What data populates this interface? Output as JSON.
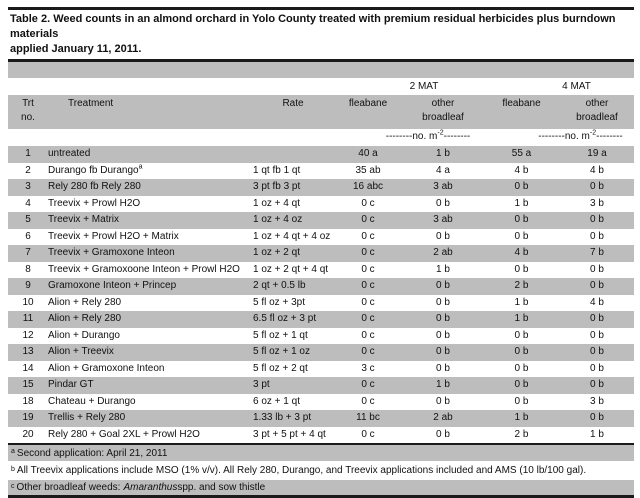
{
  "title": {
    "line1": "Table 2. Weed counts in an almond orchard in Yolo County treated with premium residual herbicides plus burndown materials",
    "line2": "applied January 11, 2011."
  },
  "header": {
    "group_2mat": "2 MAT",
    "group_4mat": "4 MAT",
    "trt_line1": "Trt",
    "trt_line2": "no.",
    "treatment": "Treatment",
    "rate": "Rate",
    "fleabane_2mat": "fleabane",
    "other_2mat_line1": "other",
    "other_2mat_line2": "broadleaf",
    "fleabane_4mat": "fleabane",
    "other_4mat_line1": "other",
    "other_4mat_line2": "broadleaf",
    "units_pre": "--------no. m",
    "units_sup": "-2",
    "units_post": "--------"
  },
  "table": {
    "rows": [
      {
        "no": "1",
        "treatment": "untreated",
        "sup": "",
        "rate": "",
        "f2": "40 a",
        "o2": "1 b",
        "f4": "55 a",
        "o4": "19 a"
      },
      {
        "no": "2",
        "treatment": "Durango fb Durango",
        "sup": "a",
        "rate": "1 qt fb 1 qt",
        "f2": "35 ab",
        "o2": "4 a",
        "f4": "4 b",
        "o4": "4 b"
      },
      {
        "no": "3",
        "treatment": "Rely 280 fb Rely 280",
        "sup": "",
        "rate": "3 pt fb 3 pt",
        "f2": "16 abc",
        "o2": "3 ab",
        "f4": "0 b",
        "o4": "0 b"
      },
      {
        "no": "4",
        "treatment": "Treevix + Prowl H2O",
        "sup": "",
        "rate": "1 oz + 4 qt",
        "f2": "0 c",
        "o2": "0 b",
        "f4": "1 b",
        "o4": "3 b"
      },
      {
        "no": "5",
        "treatment": "Treevix + Matrix",
        "sup": "",
        "rate": "1 oz + 4 oz",
        "f2": "0 c",
        "o2": "3 ab",
        "f4": "0 b",
        "o4": "0 b"
      },
      {
        "no": "6",
        "treatment": "Treevix + Prowl H2O + Matrix",
        "sup": "",
        "rate": "1 oz + 4 qt + 4 oz",
        "f2": "0 c",
        "o2": "0 b",
        "f4": "0 b",
        "o4": "0 b"
      },
      {
        "no": "7",
        "treatment": "Treevix + Gramoxone Inteon",
        "sup": "",
        "rate": "1 oz + 2 qt",
        "f2": "0 c",
        "o2": "2 ab",
        "f4": "4 b",
        "o4": "7 b"
      },
      {
        "no": "8",
        "treatment": "Treevix + Gramoxoone Inteon + Prowl H2O",
        "sup": "",
        "rate": "1 oz + 2 qt + 4 qt",
        "f2": "0 c",
        "o2": "1 b",
        "f4": "0 b",
        "o4": "0 b"
      },
      {
        "no": "9",
        "treatment": "Gramoxone Inteon + Princep",
        "sup": "",
        "rate": "2 qt + 0.5 lb",
        "f2": "0 c",
        "o2": "0 b",
        "f4": "2 b",
        "o4": "0 b"
      },
      {
        "no": "10",
        "treatment": "Alion + Rely 280",
        "sup": "",
        "rate": "5 fl oz + 3pt",
        "f2": "0 c",
        "o2": "0 b",
        "f4": "1 b",
        "o4": "4 b"
      },
      {
        "no": "11",
        "treatment": "Alion + Rely 280",
        "sup": "",
        "rate": "6.5 fl oz + 3 pt",
        "f2": "0 c",
        "o2": "0 b",
        "f4": "1 b",
        "o4": "0 b"
      },
      {
        "no": "12",
        "treatment": "Alion + Durango",
        "sup": "",
        "rate": "5 fl oz + 1 qt",
        "f2": "0 c",
        "o2": "0 b",
        "f4": "0 b",
        "o4": "0 b"
      },
      {
        "no": "13",
        "treatment": "Alion + Treevix",
        "sup": "",
        "rate": "5 fl oz + 1 oz",
        "f2": "0 c",
        "o2": "0 b",
        "f4": "0 b",
        "o4": "0 b"
      },
      {
        "no": "14",
        "treatment": "Alion + Gramoxone Inteon",
        "sup": "",
        "rate": "5 fl oz + 2 qt",
        "f2": "3 c",
        "o2": "0 b",
        "f4": "0 b",
        "o4": "0 b"
      },
      {
        "no": "15",
        "treatment": "Pindar GT",
        "sup": "",
        "rate": "3 pt",
        "f2": "0 c",
        "o2": "1 b",
        "f4": "0 b",
        "o4": "0 b"
      },
      {
        "no": "18",
        "treatment": "Chateau + Durango",
        "sup": "",
        "rate": "6 oz + 1 qt",
        "f2": "0 c",
        "o2": "0 b",
        "f4": "0 b",
        "o4": "3 b"
      },
      {
        "no": "19",
        "treatment": "Trellis + Rely 280",
        "sup": "",
        "rate": "1.33 lb + 3 pt",
        "f2": "11 bc",
        "o2": "2 ab",
        "f4": "1 b",
        "o4": "0 b"
      },
      {
        "no": "20",
        "treatment": "Rely 280 + Goal 2XL + Prowl H2O",
        "sup": "",
        "rate": "3 pt + 5 pt + 4 qt",
        "f2": "0 c",
        "o2": "0 b",
        "f4": "2 b",
        "o4": "1 b"
      }
    ]
  },
  "footnotes": {
    "a": {
      "sup": "a",
      "text": "Second application: April 21, 2011"
    },
    "b": {
      "sup": "b",
      "text": "All Treevix applications include MSO (1% v/v). All Rely 280, Durango, and Treevix applications included  and AMS (10 lb/100 gal)."
    },
    "c": {
      "sup": "c",
      "pre": "Other broadleaf weeds:",
      "italic": "Amaranthus",
      "post": " spp. and sow thistle"
    }
  },
  "colors": {
    "row_gray": "#bdbdbd",
    "rule_black": "#1a1a1a",
    "background": "#ffffff",
    "text": "#111111"
  }
}
